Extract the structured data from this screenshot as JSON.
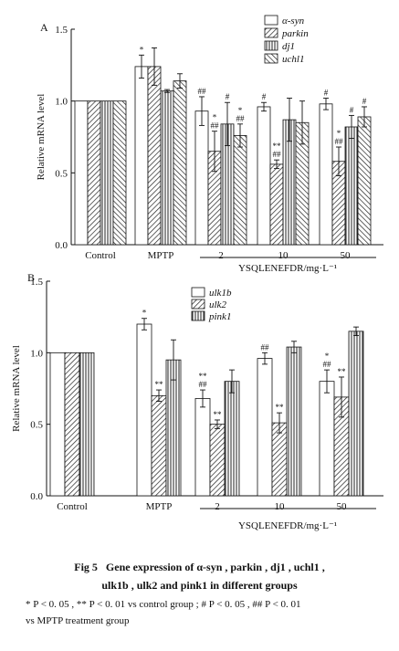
{
  "chart_data": [
    {
      "type": "bar",
      "panel_label": "A",
      "ylabel": "Relative mRNA level",
      "xlabel": "YSQLENEFDR/mg·L⁻¹",
      "ylim": [
        0,
        1.5
      ],
      "yticks": [
        "0.0",
        "0.5",
        "1.0",
        "1.5"
      ],
      "categories": [
        "Control",
        "MPTP",
        "2",
        "10",
        "50"
      ],
      "dose_group": [
        "2",
        "10",
        "50"
      ],
      "legend_position": "top-right",
      "series": [
        {
          "name": "α-syn",
          "pattern": "open",
          "values": [
            1.0,
            1.24,
            0.93,
            0.96,
            0.98
          ],
          "errors": [
            0,
            0.08,
            0.1,
            0.03,
            0.04
          ],
          "marks": [
            "",
            "*",
            "##",
            "#",
            "#"
          ]
        },
        {
          "name": "parkin",
          "pattern": "diag",
          "values": [
            1.0,
            1.24,
            0.65,
            0.56,
            0.58
          ],
          "errors": [
            0,
            0.13,
            0.14,
            0.03,
            0.1
          ],
          "marks": [
            "",
            "",
            "*\n##",
            "**\n##",
            "*\n##"
          ]
        },
        {
          "name": "dj1",
          "pattern": "vert",
          "values": [
            1.0,
            1.07,
            0.84,
            0.87,
            0.82
          ],
          "errors": [
            0,
            0.01,
            0.15,
            0.15,
            0.08
          ],
          "marks": [
            "",
            "",
            "#",
            "",
            "#"
          ]
        },
        {
          "name": "uchl1",
          "pattern": "back",
          "values": [
            1.0,
            1.14,
            0.76,
            0.85,
            0.89
          ],
          "errors": [
            0,
            0.05,
            0.08,
            0.15,
            0.07
          ],
          "marks": [
            "",
            "",
            "*\n##",
            "",
            "#"
          ]
        }
      ]
    },
    {
      "type": "bar",
      "panel_label": "B",
      "ylabel": "Relative mRNA level",
      "xlabel": "YSQLENEFDR/mg·L⁻¹",
      "ylim": [
        0,
        1.5
      ],
      "yticks": [
        "0.0",
        "0.5",
        "1.0",
        "1.5"
      ],
      "categories": [
        "Control",
        "MPTP",
        "2",
        "10",
        "50"
      ],
      "dose_group": [
        "2",
        "10",
        "50"
      ],
      "legend_position": "top-right",
      "series": [
        {
          "name": "ulk1b",
          "pattern": "open",
          "values": [
            1.0,
            1.2,
            0.68,
            0.96,
            0.8
          ],
          "errors": [
            0,
            0.04,
            0.06,
            0.04,
            0.08
          ],
          "marks": [
            "",
            "*",
            "**\n##",
            "##",
            "*\n##"
          ]
        },
        {
          "name": "ulk2",
          "pattern": "diag",
          "values": [
            1.0,
            0.7,
            0.5,
            0.51,
            0.69
          ],
          "errors": [
            0,
            0.04,
            0.03,
            0.07,
            0.14
          ],
          "marks": [
            "",
            "**",
            "**",
            "**",
            "**"
          ]
        },
        {
          "name": "pink1",
          "pattern": "vert",
          "values": [
            1.0,
            0.95,
            0.8,
            1.04,
            1.15
          ],
          "errors": [
            0,
            0.14,
            0.08,
            0.04,
            0.03
          ],
          "marks": [
            "",
            "",
            "",
            "",
            ""
          ]
        }
      ]
    }
  ],
  "caption": {
    "fig_label": "Fig 5",
    "title_line1": "Gene expression of α-syn , parkin , dj1 , uchl1 ,",
    "title_line2": "ulk1b , ulk2 and pink1 in different groups",
    "note_line1": "* P < 0. 05 , ** P < 0. 01 vs control group ; # P < 0. 05 , ## P < 0. 01",
    "note_line2": "vs MPTP treatment group"
  }
}
